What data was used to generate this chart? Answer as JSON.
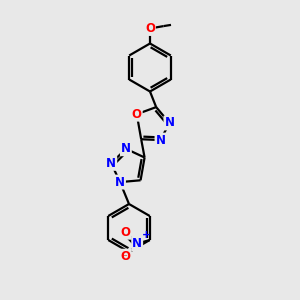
{
  "bg_color": "#e8e8e8",
  "bond_color": "#000000",
  "N_color": "#0000ff",
  "O_color": "#ff0000",
  "text_color": "#000000",
  "line_width": 1.6,
  "font_size": 8.5,
  "figsize": [
    3.0,
    3.0
  ],
  "dpi": 100,
  "xlim": [
    0,
    10
  ],
  "ylim": [
    0,
    10
  ]
}
